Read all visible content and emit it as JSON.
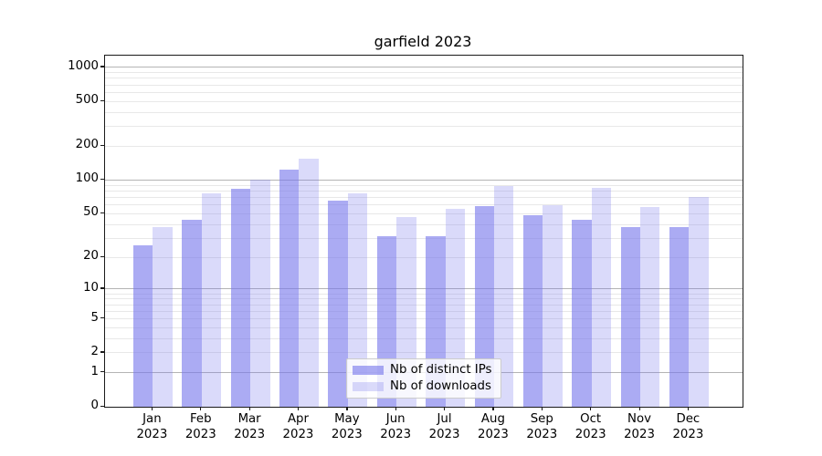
{
  "title": "garfield 2023",
  "chart_data": {
    "type": "bar",
    "title": "garfield 2023",
    "categories": [
      "Jan",
      "Feb",
      "Mar",
      "Apr",
      "May",
      "Jun",
      "Jul",
      "Aug",
      "Sep",
      "Oct",
      "Nov",
      "Dec"
    ],
    "year_label": "2023",
    "series": [
      {
        "name": "Nb of distinct IPs",
        "color": "rgba(120,120,235,0.62)",
        "values": [
          26,
          44,
          83,
          125,
          65,
          31,
          31,
          58,
          48,
          44,
          38,
          38
        ]
      },
      {
        "name": "Nb of downloads",
        "color": "rgba(120,120,235,0.27)",
        "values": [
          38,
          76,
          100,
          156,
          76,
          47,
          55,
          89,
          60,
          85,
          57,
          70
        ]
      }
    ],
    "xlabel": "",
    "ylabel": "",
    "yscale": "log10(value+1)",
    "ylim": [
      0,
      1260
    ],
    "yticks": [
      0,
      1,
      2,
      5,
      10,
      20,
      50,
      100,
      200,
      500,
      1000
    ],
    "grid_on": true,
    "grid_major_at": [
      1,
      10,
      100,
      1000
    ],
    "grid_minor_at": [
      2,
      3,
      4,
      5,
      6,
      7,
      8,
      9,
      20,
      30,
      40,
      50,
      60,
      70,
      80,
      90,
      200,
      300,
      400,
      500,
      600,
      700,
      800,
      900
    ],
    "legend_position": "lower center",
    "colors": {
      "grid_major": "#b4b4b4",
      "grid_minor": "#e8e8e8",
      "axis": "#1a1a1a",
      "text": "#000000",
      "background": "#ffffff"
    }
  }
}
